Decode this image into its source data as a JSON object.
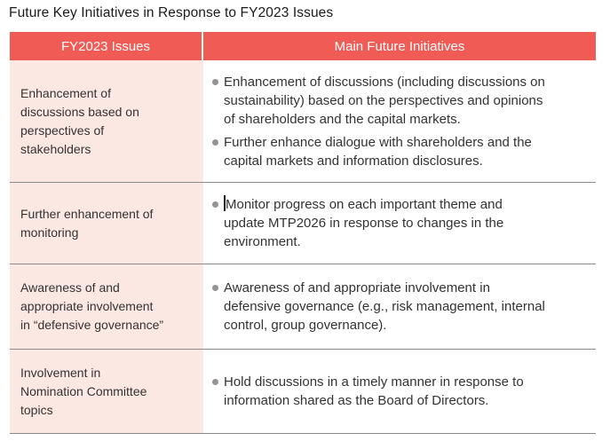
{
  "page": {
    "title": "Future Key Initiatives in Response to FY2023 Issues"
  },
  "table": {
    "columns": [
      {
        "label": "FY2023 Issues"
      },
      {
        "label": "Main Future Initiatives"
      }
    ],
    "rows": [
      {
        "issue": "Enhancement of\ndiscussions based on\nperspectives of\nstakeholders",
        "initiatives": [
          "Enhancement of discussions (including discussions on\nsustainability) based on the perspectives and opinions\nof shareholders and the capital markets.",
          "Further enhance dialogue with shareholders and the\ncapital markets and information disclosures."
        ]
      },
      {
        "issue": "Further enhancement of\nmonitoring",
        "initiatives": [
          "Monitor progress on each important theme and\nupdate MTP2026 in response to changes in the\nenvironment."
        ]
      },
      {
        "issue": "Awareness of and\nappropriate involvement\nin “defensive governance”",
        "initiatives": [
          "Awareness of and appropriate involvement in\ndefensive governance (e.g., risk management, internal\ncontrol, group governance)."
        ]
      },
      {
        "issue": "Involvement in\nNomination Committee\ntopics",
        "initiatives": [
          "Hold discussions in a timely manner in response to\ninformation shared as the Board of Directors."
        ]
      }
    ]
  },
  "colors": {
    "header_bg": "#F15B55",
    "header_text": "#FFFFFF",
    "issue_cell_bg": "#FBE8E2",
    "separator": "#8A8A8A",
    "bullet": "#949494",
    "body_text": "#333333",
    "title_text": "#1B1B1B",
    "caret": "#1A1A1A"
  }
}
